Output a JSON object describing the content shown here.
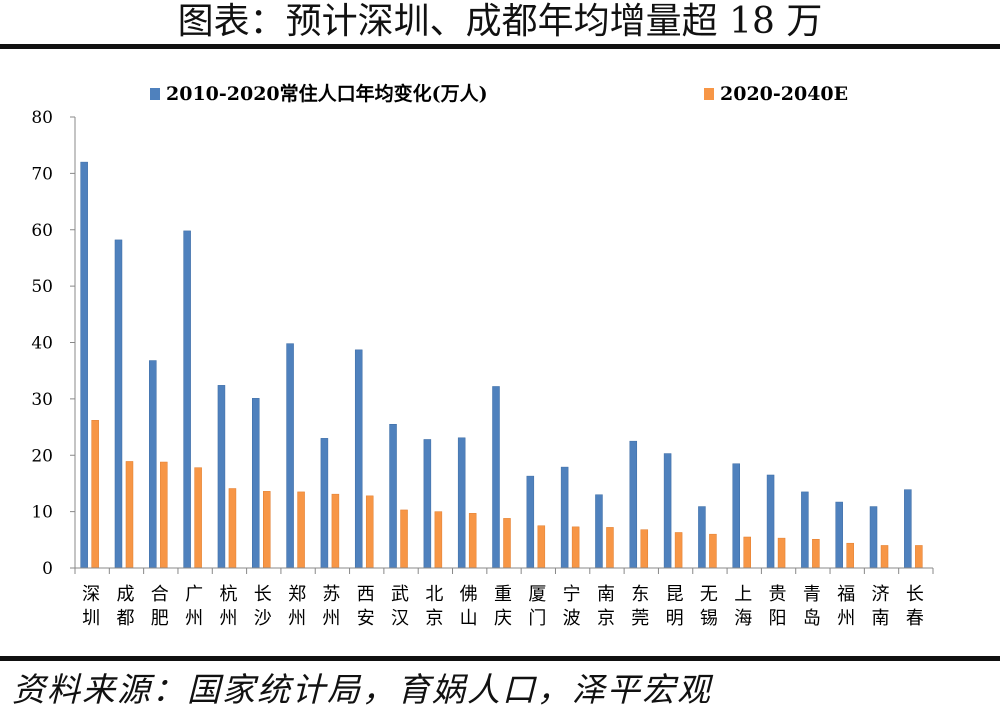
{
  "title": "图表：预计深圳、成都年均增量超 18 万",
  "source": "资料来源：国家统计局，育娲人口，泽平宏观",
  "colors": {
    "series1": "#4f81bd",
    "series2": "#f79646"
  },
  "chart_data": {
    "type": "bar",
    "categories": [
      "深圳",
      "成都",
      "合肥",
      "广州",
      "杭州",
      "长沙",
      "郑州",
      "苏州",
      "西安",
      "武汉",
      "北京",
      "佛山",
      "重庆",
      "厦门",
      "宁波",
      "南京",
      "东莞",
      "昆明",
      "无锡",
      "上海",
      "贵阳",
      "青岛",
      "福州",
      "济南",
      "长春"
    ],
    "series": [
      {
        "name": "2010-2020常住人口年均变化(万人)",
        "values": [
          72.0,
          58.2,
          36.8,
          59.8,
          32.4,
          30.1,
          39.8,
          23.0,
          38.7,
          25.5,
          22.8,
          23.1,
          32.2,
          16.3,
          17.9,
          13.0,
          22.5,
          20.3,
          10.9,
          18.5,
          16.5,
          13.5,
          11.7,
          10.9,
          13.9
        ]
      },
      {
        "name": "2020-2040E",
        "values": [
          26.2,
          18.9,
          18.8,
          17.8,
          14.1,
          13.6,
          13.5,
          13.1,
          12.8,
          10.3,
          10.0,
          9.7,
          8.8,
          7.5,
          7.3,
          7.2,
          6.8,
          6.3,
          6.0,
          5.5,
          5.3,
          5.1,
          4.4,
          4.0,
          4.0
        ]
      }
    ],
    "ylim": [
      0,
      80
    ],
    "yticks": [
      "0",
      "10",
      "20",
      "30",
      "40",
      "50",
      "60",
      "70",
      "80"
    ],
    "legend_position": "top",
    "grid": false
  }
}
